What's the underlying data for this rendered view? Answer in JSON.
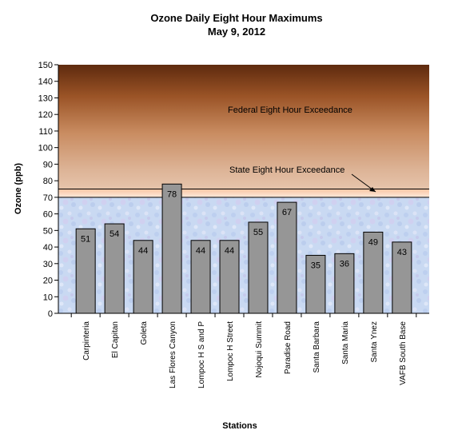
{
  "chart_data": {
    "type": "bar",
    "title": "Ozone Daily Eight Hour Maximums",
    "subtitle": "May 9, 2012",
    "xlabel": "Stations",
    "ylabel": "Ozone (ppb)",
    "ylim": [
      0,
      150
    ],
    "yticks": [
      0,
      10,
      20,
      30,
      40,
      50,
      60,
      70,
      80,
      90,
      100,
      110,
      120,
      130,
      140,
      150
    ],
    "categories": [
      "Carpinteria",
      "El Capitan",
      "Goleta",
      "Las Flores Canyon",
      "Lompoc H S and P",
      "Lompoc H Street",
      "Nojoqui Summit",
      "Paradise Road",
      "Santa Barbara",
      "Santa Maria",
      "Santa Ynez",
      "VAFB South Base"
    ],
    "values": [
      51,
      54,
      44,
      78,
      44,
      44,
      55,
      67,
      35,
      36,
      49,
      43
    ],
    "grid": false,
    "legend": "none",
    "bar_color": "#969696",
    "thresholds": {
      "state": 70,
      "federal": 75
    },
    "annotations": {
      "federal": "Federal Eight Hour Exceedance",
      "state": "State Eight Hour Exceedance"
    }
  }
}
